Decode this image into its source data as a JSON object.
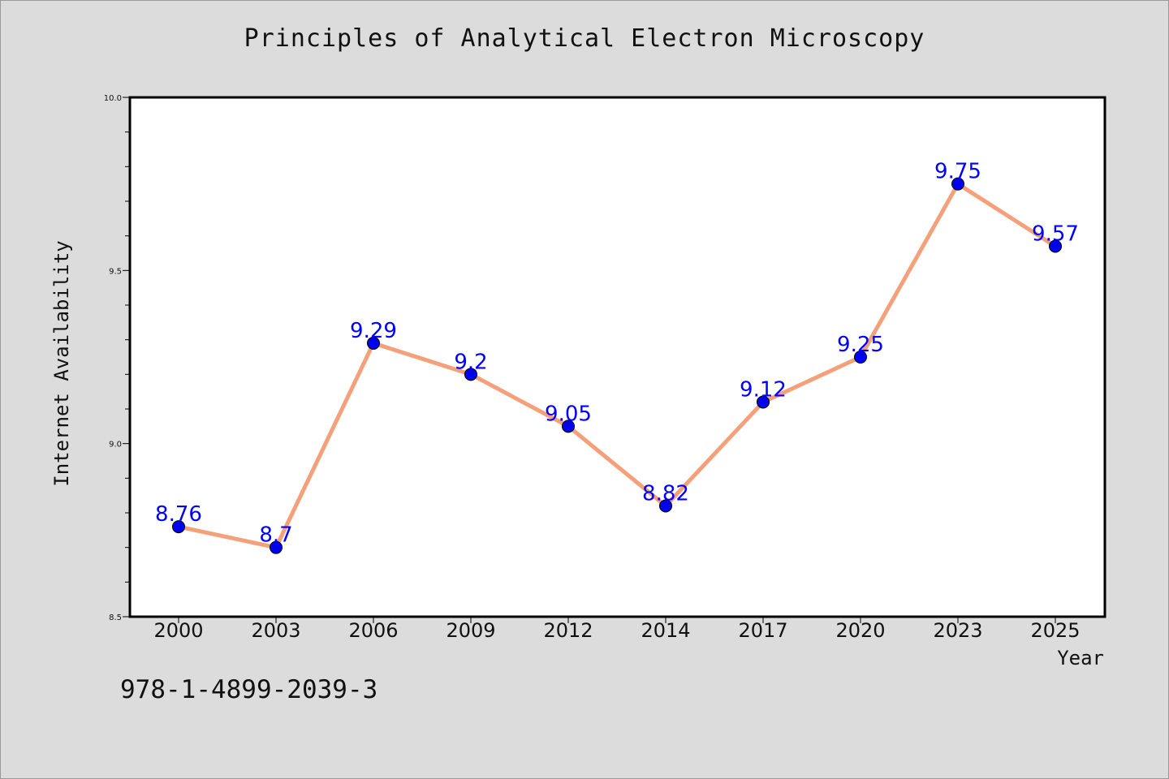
{
  "chart_data": {
    "type": "line",
    "title": "Principles of Analytical Electron Microscopy",
    "xlabel": "Year",
    "ylabel": "Internet Availability",
    "categories": [
      "2000",
      "2003",
      "2006",
      "2009",
      "2012",
      "2014",
      "2017",
      "2020",
      "2023",
      "2025"
    ],
    "series": [
      {
        "values": [
          8.76,
          8.7,
          9.29,
          9.2,
          9.05,
          8.82,
          9.12,
          9.25,
          9.75,
          9.57
        ],
        "data_labels": [
          "8.76",
          "8.7",
          "9.29",
          "9.2",
          "9.05",
          "8.82",
          "9.12",
          "9.25",
          "9.75",
          "9.57"
        ]
      }
    ],
    "ylim": [
      8.5,
      10.0
    ],
    "yticks": [
      "8.5",
      "9.0",
      "9.5",
      "10.0"
    ],
    "grid": false,
    "colors": {
      "line": "#f4a07a",
      "marker": "#0000ee",
      "label": "#0000ff"
    }
  },
  "footer": {
    "isbn": "978-1-4899-2039-3"
  }
}
